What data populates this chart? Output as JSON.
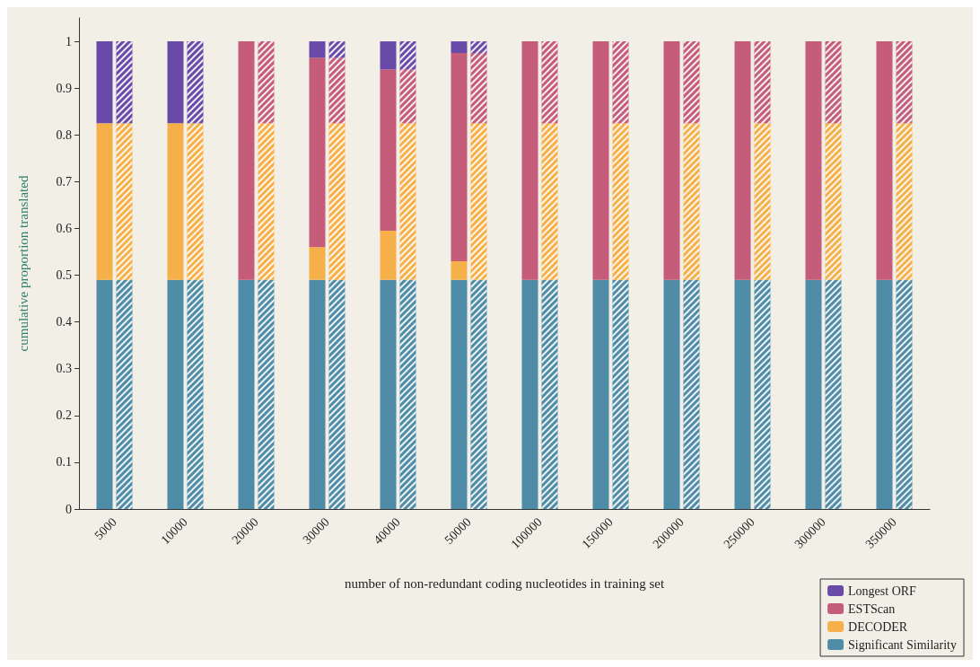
{
  "chart_data": {
    "type": "bar",
    "xlabel": "number of non-redundant coding nucleotides in training set",
    "ylabel": "cumulative proportion translated",
    "categories": [
      "5000",
      "10000",
      "20000",
      "30000",
      "40000",
      "50000",
      "100000",
      "150000",
      "200000",
      "250000",
      "300000",
      "350000"
    ],
    "ylim": [
      0,
      1.05
    ],
    "yticks": [
      0,
      0.1,
      0.2,
      0.3,
      0.4,
      0.5,
      0.6,
      0.7,
      0.8,
      0.9,
      1
    ],
    "grid": false,
    "legend": "bottom right",
    "series": [
      {
        "name": "Significant Similarity",
        "color": "#4f8ca8",
        "base": [
          0,
          0,
          0,
          0,
          0,
          0,
          0,
          0,
          0,
          0,
          0,
          0
        ],
        "values": [
          0.49,
          0.49,
          0.49,
          0.49,
          0.49,
          0.49,
          0.49,
          0.49,
          0.49,
          0.49,
          0.49,
          0.49
        ]
      },
      {
        "name": "DECODER",
        "color": "#f5b04a",
        "base": [
          0.49,
          0.49,
          null,
          0.49,
          0.49,
          0.49,
          null,
          null,
          null,
          null,
          null,
          null
        ],
        "values": [
          0.335,
          0.335,
          null,
          0.07,
          0.105,
          0.04,
          null,
          null,
          null,
          null,
          null,
          null
        ]
      },
      {
        "name": "ESTScan",
        "color": "#c45c7a",
        "base": [
          null,
          null,
          0.49,
          0.56,
          0.595,
          0.53,
          0.49,
          0.49,
          0.49,
          0.49,
          0.49,
          0.49
        ],
        "values": [
          null,
          null,
          0.51,
          0.405,
          0.345,
          0.445,
          0.51,
          0.51,
          0.51,
          0.51,
          0.51,
          0.51
        ]
      },
      {
        "name": "Longest ORF",
        "color": "#6a4aa8",
        "base": [
          0.825,
          0.825,
          null,
          0.965,
          0.94,
          0.975,
          null,
          null,
          null,
          null,
          null,
          null
        ],
        "values": [
          0.175,
          0.175,
          null,
          0.035,
          0.06,
          0.025,
          null,
          null,
          null,
          null,
          null,
          null
        ]
      },
      {
        "color": "#4f8ca8",
        "base": [
          0,
          0,
          0,
          0,
          0,
          0,
          0,
          0,
          0,
          0,
          0,
          0
        ],
        "values": [
          0.49,
          0.49,
          0.49,
          0.49,
          0.49,
          0.49,
          0.49,
          0.49,
          0.49,
          0.49,
          0.49,
          0.49
        ]
      },
      {
        "color": "#f5b04a",
        "base": [
          0.49,
          0.49,
          0.49,
          0.49,
          0.49,
          0.49,
          0.49,
          0.49,
          0.49,
          0.49,
          0.49,
          0.49
        ],
        "values": [
          0.335,
          0.335,
          0.335,
          0.335,
          0.335,
          0.335,
          0.335,
          0.335,
          0.335,
          0.335,
          0.335,
          0.335
        ]
      },
      {
        "color": "#c45c7a",
        "base": [
          null,
          null,
          0.825,
          0.825,
          0.825,
          0.825,
          0.825,
          0.825,
          0.825,
          0.825,
          0.825,
          0.825
        ],
        "values": [
          null,
          null,
          0.175,
          0.14,
          0.115,
          0.15,
          0.175,
          0.175,
          0.175,
          0.175,
          0.175,
          0.175
        ]
      },
      {
        "color": "#6a4aa8",
        "base": [
          0.825,
          0.825,
          null,
          0.965,
          0.94,
          0.975,
          null,
          null,
          null,
          null,
          null,
          null
        ],
        "values": [
          0.175,
          0.175,
          null,
          0.035,
          0.06,
          0.025,
          null,
          null,
          null,
          null,
          null,
          null
        ]
      }
    ]
  }
}
